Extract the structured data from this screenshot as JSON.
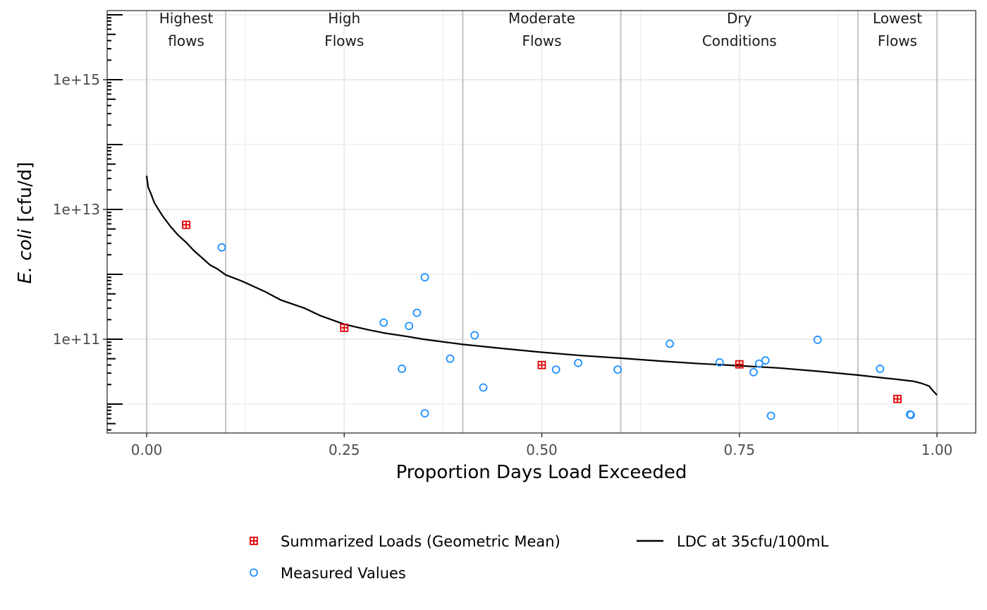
{
  "chart_data": {
    "type": "scatter",
    "xlabel": "Proportion Days Load Exceeded",
    "ylabel_italic": "E. coli",
    "ylabel_unit": "[cfu/d]",
    "x_range": [
      0,
      1
    ],
    "y_range": [
      7000000000.0,
      2e+16
    ],
    "y_scale": "log10",
    "grid": true,
    "x_ticks": [
      {
        "value": 0,
        "label": "0.00"
      },
      {
        "value": 0.25,
        "label": "0.25"
      },
      {
        "value": 0.5,
        "label": "0.50"
      },
      {
        "value": 0.75,
        "label": "0.75"
      },
      {
        "value": 1.0,
        "label": "1.00"
      }
    ],
    "y_ticks": [
      {
        "value": 100000000000.0,
        "label": "1e+11"
      },
      {
        "value": 10000000000000.0,
        "label": "1e+13"
      },
      {
        "value": 1000000000000000.0,
        "label": "1e+15"
      }
    ],
    "flow_zone_boundaries": [
      0,
      0.1,
      0.4,
      0.6,
      0.9,
      1.0
    ],
    "flow_zones": [
      {
        "line1": "Highest",
        "line2": "flows",
        "center": 0.05
      },
      {
        "line1": "High",
        "line2": "Flows",
        "center": 0.25
      },
      {
        "line1": "Moderate",
        "line2": "Flows",
        "center": 0.5
      },
      {
        "line1": "Dry",
        "line2": "Conditions",
        "center": 0.75
      },
      {
        "line1": "Lowest",
        "line2": "Flows",
        "center": 0.95
      }
    ],
    "series": [
      {
        "name": "LDC at 35cfu/100mL",
        "kind": "line",
        "color": "#000000",
        "x": [
          0,
          0.002,
          0.005,
          0.01,
          0.02,
          0.03,
          0.04,
          0.05,
          0.06,
          0.07,
          0.08,
          0.09,
          0.1,
          0.12,
          0.15,
          0.17,
          0.2,
          0.22,
          0.25,
          0.28,
          0.3,
          0.33,
          0.35,
          0.4,
          0.45,
          0.5,
          0.55,
          0.6,
          0.65,
          0.7,
          0.75,
          0.8,
          0.85,
          0.9,
          0.93,
          0.95,
          0.97,
          0.98,
          0.99,
          0.995,
          1.0
        ],
        "y": [
          33000000000000.0,
          22000000000000.0,
          18000000000000.0,
          12500000000000.0,
          8000000000000.0,
          5500000000000.0,
          4000000000000.0,
          3100000000000.0,
          2300000000000.0,
          1800000000000.0,
          1400000000000.0,
          1200000000000.0,
          980000000000.0,
          790000000000.0,
          540000000000.0,
          400000000000.0,
          300000000000.0,
          230000000000.0,
          170000000000.0,
          140000000000.0,
          125000000000.0,
          110000000000.0,
          100000000000.0,
          83000000000.0,
          72000000000.0,
          63000000000.0,
          56000000000.0,
          51000000000.0,
          46000000000.0,
          42000000000.0,
          39000000000.0,
          36000000000.0,
          32000000000.0,
          28000000000.0,
          25500000000.0,
          24000000000.0,
          22500000000.0,
          21000000000.0,
          19000000000.0,
          16000000000.0,
          13800000000.0
        ]
      },
      {
        "name": "Measured Values",
        "kind": "points",
        "color": "#1e90ff",
        "x": [
          0.095,
          0.352,
          0.3,
          0.342,
          0.332,
          0.323,
          0.352,
          0.384,
          0.415,
          0.426,
          0.518,
          0.546,
          0.596,
          0.662,
          0.725,
          0.768,
          0.775,
          0.783,
          0.79,
          0.849,
          0.928,
          0.966,
          0.967
        ],
        "y": [
          2600000000000.0,
          900000000000.0,
          180000000000.0,
          255000000000.0,
          160000000000.0,
          35000000000.0,
          7200000000.0,
          50000000000.0,
          115000000000.0,
          18000000000.0,
          34000000000.0,
          43000000000.0,
          34000000000.0,
          85000000000.0,
          44000000000.0,
          31000000000.0,
          42000000000.0,
          47000000000.0,
          6600000000.0,
          98000000000.0,
          35000000000.0,
          6900000000.0,
          6800000000.0
        ]
      },
      {
        "name": "Summarized Loads (Geometric Mean)",
        "kind": "points",
        "color": "#e00000",
        "x": [
          0.05,
          0.25,
          0.5,
          0.75,
          0.95
        ],
        "y": [
          5800000000000.0,
          150000000000.0,
          40000000000.0,
          41000000000.0,
          12000000000.0
        ]
      }
    ],
    "legend": {
      "placement": "bottom",
      "items": [
        {
          "label": "Summarized Loads (Geometric Mean)",
          "symbol": "square-plus",
          "color": "#e00000"
        },
        {
          "label": "LDC at 35cfu/100mL",
          "symbol": "line",
          "color": "#000000"
        },
        {
          "label": "Measured Values",
          "symbol": "circle",
          "color": "#1e90ff"
        }
      ]
    }
  }
}
